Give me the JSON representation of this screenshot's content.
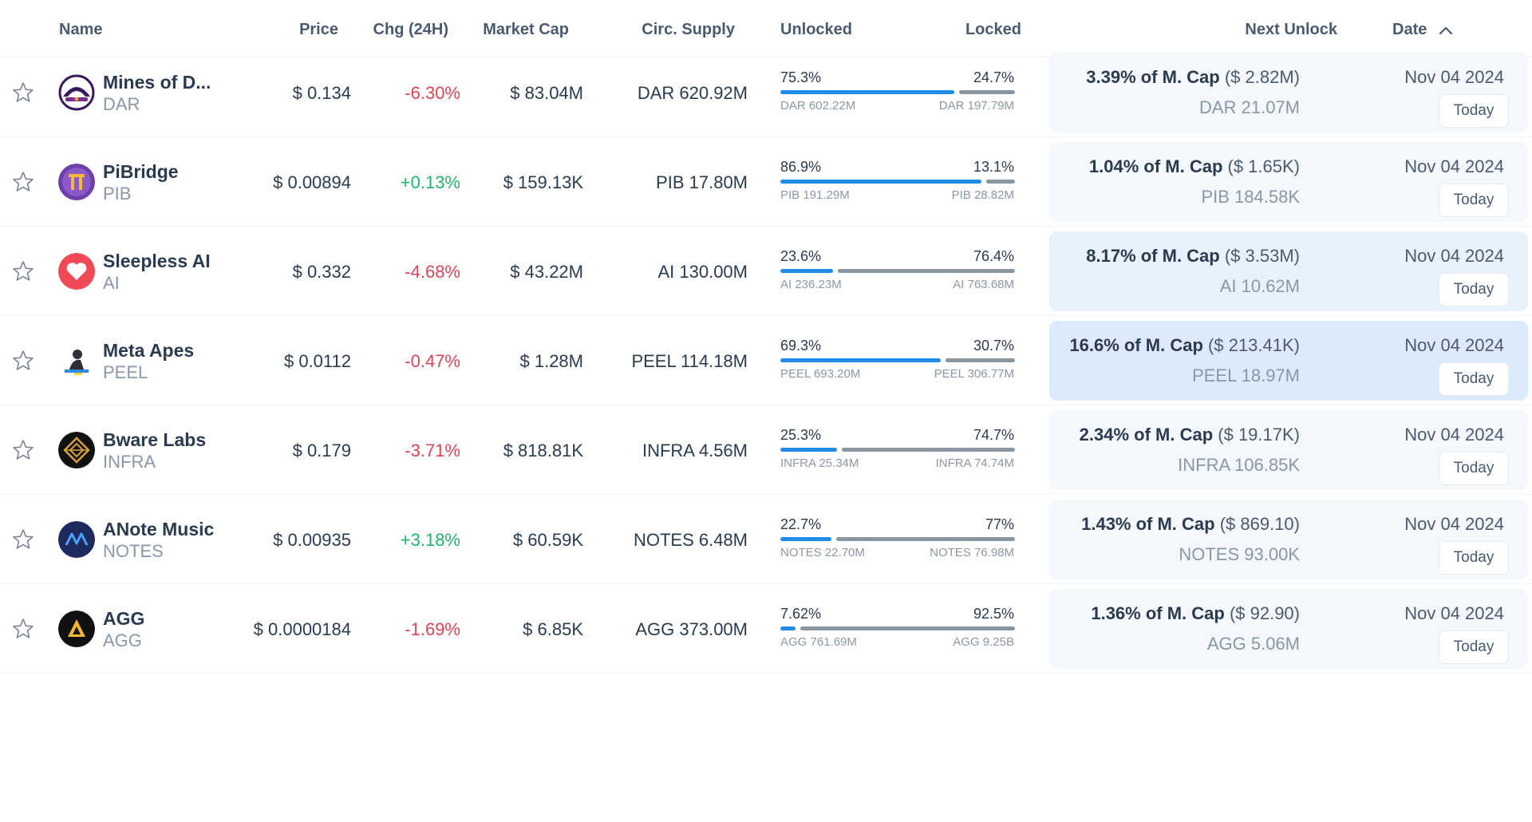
{
  "header": {
    "name": "Name",
    "price": "Price",
    "chg": "Chg (24H)",
    "market_cap": "Market Cap",
    "circ_supply": "Circ. Supply",
    "unlocked": "Unlocked",
    "locked": "Locked",
    "next_unlock": "Next Unlock",
    "date": "Date"
  },
  "colors": {
    "negative": "#e04355",
    "positive": "#1fb66a",
    "unlocked_bar": "#1f8de6",
    "locked_bar": "#8c96a1"
  },
  "rows": [
    {
      "name": "Mines of D...",
      "symbol": "DAR",
      "price": "$ 0.134",
      "chg": "-6.30%",
      "chg_dir": "neg",
      "mcap": "$ 83.04M",
      "circ": "DAR 620.92M",
      "unlocked_pct": "75.3%",
      "locked_pct": "24.7%",
      "unlocked_frac": 0.753,
      "unlocked_amt": "DAR 602.22M",
      "locked_amt": "DAR 197.79M",
      "nu_pct": "3.39% of M. Cap",
      "nu_val": " ($ 2.82M)",
      "nu_amt": "DAR 21.07M",
      "date": "Nov 04 2024",
      "today": "Today",
      "card_color": "#f4f7fb",
      "logo": "dar-logo-icon"
    },
    {
      "name": "PiBridge",
      "symbol": "PIB",
      "price": "$ 0.00894",
      "chg": "+0.13%",
      "chg_dir": "pos",
      "mcap": "$ 159.13K",
      "circ": "PIB 17.80M",
      "unlocked_pct": "86.9%",
      "locked_pct": "13.1%",
      "unlocked_frac": 0.869,
      "unlocked_amt": "PIB 191.29M",
      "locked_amt": "PIB 28.82M",
      "nu_pct": "1.04% of M. Cap",
      "nu_val": " ($ 1.65K)",
      "nu_amt": "PIB 184.58K",
      "date": "Nov 04 2024",
      "today": "Today",
      "card_color": "#f4f7fb",
      "logo": "pib-logo-icon"
    },
    {
      "name": "Sleepless AI",
      "symbol": "AI",
      "price": "$ 0.332",
      "chg": "-4.68%",
      "chg_dir": "neg",
      "mcap": "$ 43.22M",
      "circ": "AI 130.00M",
      "unlocked_pct": "23.6%",
      "locked_pct": "76.4%",
      "unlocked_frac": 0.236,
      "unlocked_amt": "AI 236.23M",
      "locked_amt": "AI 763.68M",
      "nu_pct": "8.17% of M. Cap",
      "nu_val": " ($ 3.53M)",
      "nu_amt": "AI 10.62M",
      "date": "Nov 04 2024",
      "today": "Today",
      "card_color": "#e8f2fc",
      "logo": "ai-logo-icon"
    },
    {
      "name": "Meta Apes",
      "symbol": "PEEL",
      "price": "$ 0.0112",
      "chg": "-0.47%",
      "chg_dir": "neg",
      "mcap": "$ 1.28M",
      "circ": "PEEL 114.18M",
      "unlocked_pct": "69.3%",
      "locked_pct": "30.7%",
      "unlocked_frac": 0.693,
      "unlocked_amt": "PEEL 693.20M",
      "locked_amt": "PEEL 306.77M",
      "nu_pct": "16.6% of M. Cap",
      "nu_val": " ($ 213.41K)",
      "nu_amt": "PEEL 18.97M",
      "date": "Nov 04 2024",
      "today": "Today",
      "card_color": "#dcebfb",
      "logo": "peel-logo-icon"
    },
    {
      "name": "Bware Labs",
      "symbol": "INFRA",
      "price": "$ 0.179",
      "chg": "-3.71%",
      "chg_dir": "neg",
      "mcap": "$ 818.81K",
      "circ": "INFRA 4.56M",
      "unlocked_pct": "25.3%",
      "locked_pct": "74.7%",
      "unlocked_frac": 0.253,
      "unlocked_amt": "INFRA 25.34M",
      "locked_amt": "INFRA 74.74M",
      "nu_pct": "2.34% of M. Cap",
      "nu_val": " ($ 19.17K)",
      "nu_amt": "INFRA 106.85K",
      "date": "Nov 04 2024",
      "today": "Today",
      "card_color": "#f4f7fb",
      "logo": "infra-logo-icon"
    },
    {
      "name": "ANote Music",
      "symbol": "NOTES",
      "price": "$ 0.00935",
      "chg": "+3.18%",
      "chg_dir": "pos",
      "mcap": "$ 60.59K",
      "circ": "NOTES 6.48M",
      "unlocked_pct": "22.7%",
      "locked_pct": "77%",
      "unlocked_frac": 0.227,
      "unlocked_amt": "NOTES 22.70M",
      "locked_amt": "NOTES 76.98M",
      "nu_pct": "1.43% of M. Cap",
      "nu_val": " ($ 869.10)",
      "nu_amt": "NOTES 93.00K",
      "date": "Nov 04 2024",
      "today": "Today",
      "card_color": "#f4f7fb",
      "logo": "notes-logo-icon"
    },
    {
      "name": "AGG",
      "symbol": "AGG",
      "price": "$ 0.0000184",
      "chg": "-1.69%",
      "chg_dir": "neg",
      "mcap": "$ 6.85K",
      "circ": "AGG 373.00M",
      "unlocked_pct": "7.62%",
      "locked_pct": "92.5%",
      "unlocked_frac": 0.0762,
      "unlocked_amt": "AGG 761.69M",
      "locked_amt": "AGG 9.25B",
      "nu_pct": "1.36% of M. Cap",
      "nu_val": " ($ 92.90)",
      "nu_amt": "AGG 5.06M",
      "date": "Nov 04 2024",
      "today": "Today",
      "card_color": "#f4f7fb",
      "logo": "agg-logo-icon"
    }
  ]
}
